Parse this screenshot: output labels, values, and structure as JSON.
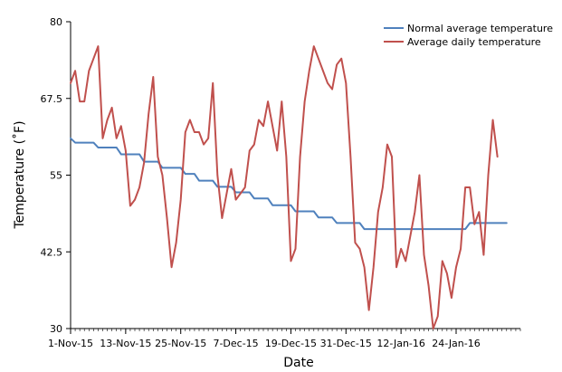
{
  "chart_data": {
    "type": "line",
    "xlabel": "Date",
    "ylabel": "Temperature (˚F)",
    "ylim": [
      30,
      80
    ],
    "yticks": [
      30,
      42.5,
      55,
      67.5,
      80
    ],
    "ytick_labels": [
      "30",
      "42.5",
      "55",
      "67.5",
      "80"
    ],
    "xlim": [
      "2015-11-01",
      "2016-02-07"
    ],
    "xtick_labels": [
      "1-Nov-15",
      "13-Nov-15",
      "25-Nov-15",
      "7-Dec-15",
      "19-Dec-15",
      "31-Dec-15",
      "12-Jan-16",
      "24-Jan-16"
    ],
    "xtick_dates": [
      "2015-11-01",
      "2015-11-13",
      "2015-11-25",
      "2015-12-07",
      "2015-12-19",
      "2015-12-31",
      "2016-01-12",
      "2016-01-24"
    ],
    "grid": false,
    "legend": "top-right",
    "series": [
      {
        "name": "Normal average temperature",
        "color": "#4f81bd",
        "points": [
          [
            "2015-11-01",
            61
          ],
          [
            "2015-11-02",
            60.3
          ],
          [
            "2015-11-06",
            60.3
          ],
          [
            "2015-11-07",
            59.5
          ],
          [
            "2015-11-11",
            59.5
          ],
          [
            "2015-11-12",
            58.4
          ],
          [
            "2015-11-16",
            58.4
          ],
          [
            "2015-11-17",
            57.2
          ],
          [
            "2015-11-20",
            57.2
          ],
          [
            "2015-11-21",
            56.2
          ],
          [
            "2015-11-25",
            56.2
          ],
          [
            "2015-11-26",
            55.2
          ],
          [
            "2015-11-28",
            55.2
          ],
          [
            "2015-11-29",
            54.1
          ],
          [
            "2015-12-02",
            54.1
          ],
          [
            "2015-12-03",
            53.1
          ],
          [
            "2015-12-06",
            53.1
          ],
          [
            "2015-12-07",
            52.2
          ],
          [
            "2015-12-10",
            52.2
          ],
          [
            "2015-12-11",
            51.2
          ],
          [
            "2015-12-14",
            51.2
          ],
          [
            "2015-12-15",
            50.1
          ],
          [
            "2015-12-19",
            50.1
          ],
          [
            "2015-12-20",
            49.1
          ],
          [
            "2015-12-24",
            49.1
          ],
          [
            "2015-12-25",
            48.1
          ],
          [
            "2015-12-28",
            48.1
          ],
          [
            "2015-12-29",
            47.2
          ],
          [
            "2016-01-03",
            47.2
          ],
          [
            "2016-01-04",
            46.2
          ],
          [
            "2016-01-26",
            46.2
          ],
          [
            "2016-01-27",
            47.2
          ],
          [
            "2016-02-04",
            47.2
          ]
        ]
      },
      {
        "name": "Average daily temperature",
        "color": "#c0504d",
        "points": [
          [
            "2015-11-01",
            70
          ],
          [
            "2015-11-02",
            72
          ],
          [
            "2015-11-03",
            67
          ],
          [
            "2015-11-04",
            67
          ],
          [
            "2015-11-05",
            72
          ],
          [
            "2015-11-06",
            74
          ],
          [
            "2015-11-07",
            76
          ],
          [
            "2015-11-08",
            61
          ],
          [
            "2015-11-09",
            64
          ],
          [
            "2015-11-10",
            66
          ],
          [
            "2015-11-11",
            61
          ],
          [
            "2015-11-12",
            63
          ],
          [
            "2015-11-13",
            59
          ],
          [
            "2015-11-14",
            50
          ],
          [
            "2015-11-15",
            51
          ],
          [
            "2015-11-16",
            53
          ],
          [
            "2015-11-17",
            57
          ],
          [
            "2015-11-18",
            65
          ],
          [
            "2015-11-19",
            71
          ],
          [
            "2015-11-20",
            58
          ],
          [
            "2015-11-21",
            55
          ],
          [
            "2015-11-22",
            48
          ],
          [
            "2015-11-23",
            40
          ],
          [
            "2015-11-24",
            44
          ],
          [
            "2015-11-25",
            51
          ],
          [
            "2015-11-26",
            62
          ],
          [
            "2015-11-27",
            64
          ],
          [
            "2015-11-28",
            62
          ],
          [
            "2015-11-29",
            62
          ],
          [
            "2015-11-30",
            60
          ],
          [
            "2015-12-01",
            61
          ],
          [
            "2015-12-02",
            70
          ],
          [
            "2015-12-03",
            55
          ],
          [
            "2015-12-04",
            48
          ],
          [
            "2015-12-05",
            52
          ],
          [
            "2015-12-06",
            56
          ],
          [
            "2015-12-07",
            51
          ],
          [
            "2015-12-08",
            52
          ],
          [
            "2015-12-09",
            53
          ],
          [
            "2015-12-10",
            59
          ],
          [
            "2015-12-11",
            60
          ],
          [
            "2015-12-12",
            64
          ],
          [
            "2015-12-13",
            63
          ],
          [
            "2015-12-14",
            67
          ],
          [
            "2015-12-15",
            63
          ],
          [
            "2015-12-16",
            59
          ],
          [
            "2015-12-17",
            67
          ],
          [
            "2015-12-18",
            58
          ],
          [
            "2015-12-19",
            41
          ],
          [
            "2015-12-20",
            43
          ],
          [
            "2015-12-21",
            58
          ],
          [
            "2015-12-22",
            67
          ],
          [
            "2015-12-23",
            72
          ],
          [
            "2015-12-24",
            76
          ],
          [
            "2015-12-25",
            74
          ],
          [
            "2015-12-26",
            72
          ],
          [
            "2015-12-27",
            70
          ],
          [
            "2015-12-28",
            69
          ],
          [
            "2015-12-29",
            73
          ],
          [
            "2015-12-30",
            74
          ],
          [
            "2015-12-31",
            70
          ],
          [
            "2016-01-01",
            58
          ],
          [
            "2016-01-02",
            44
          ],
          [
            "2016-01-03",
            43
          ],
          [
            "2016-01-04",
            40
          ],
          [
            "2016-01-05",
            33
          ],
          [
            "2016-01-06",
            40
          ],
          [
            "2016-01-07",
            49
          ],
          [
            "2016-01-08",
            53
          ],
          [
            "2016-01-09",
            60
          ],
          [
            "2016-01-10",
            58
          ],
          [
            "2016-01-11",
            40
          ],
          [
            "2016-01-12",
            43
          ],
          [
            "2016-01-13",
            41
          ],
          [
            "2016-01-14",
            45
          ],
          [
            "2016-01-15",
            49
          ],
          [
            "2016-01-16",
            55
          ],
          [
            "2016-01-17",
            42
          ],
          [
            "2016-01-18",
            37
          ],
          [
            "2016-01-19",
            30
          ],
          [
            "2016-01-20",
            32
          ],
          [
            "2016-01-21",
            41
          ],
          [
            "2016-01-22",
            39
          ],
          [
            "2016-01-23",
            35
          ],
          [
            "2016-01-24",
            40
          ],
          [
            "2016-01-25",
            43
          ],
          [
            "2016-01-26",
            53
          ],
          [
            "2016-01-27",
            53
          ],
          [
            "2016-01-28",
            47
          ],
          [
            "2016-01-29",
            49
          ],
          [
            "2016-01-30",
            42
          ],
          [
            "2016-01-31",
            55
          ],
          [
            "2016-02-01",
            64
          ],
          [
            "2016-02-02",
            58
          ]
        ]
      }
    ]
  }
}
